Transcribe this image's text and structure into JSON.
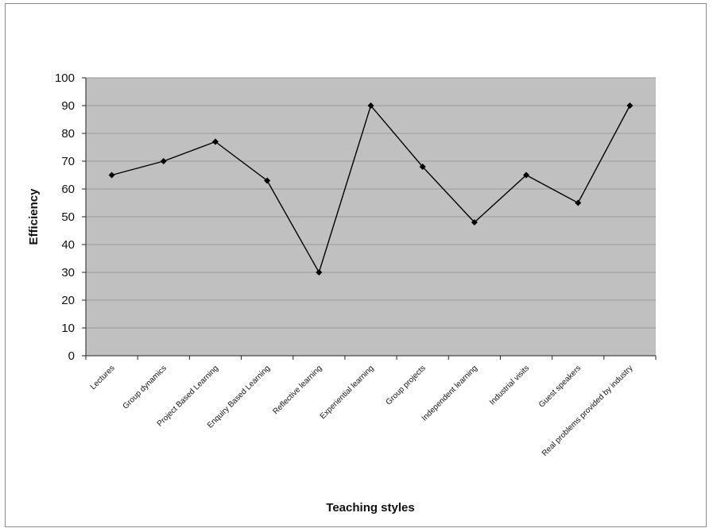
{
  "chart_data": {
    "type": "line",
    "title": "",
    "xlabel": "Teaching styles",
    "ylabel": "Efficiency",
    "ylim": [
      0,
      100
    ],
    "yticks": [
      0,
      10,
      20,
      30,
      40,
      50,
      60,
      70,
      80,
      90,
      100
    ],
    "grid": true,
    "legend": "none",
    "categories": [
      "Lectures",
      "Group dynamics",
      "Project Based Learning",
      "Enquiry Based Learning",
      "Reflective learning",
      "Experiential learning",
      "Group projects",
      "Independent learning",
      "Industrial visits",
      "Guest speakers",
      "Real problems provided by industry"
    ],
    "series": [
      {
        "values": [
          65,
          70,
          77,
          63,
          30,
          90,
          68,
          48,
          65,
          55,
          90
        ]
      }
    ],
    "colors": {
      "plot_background": "#c0c0c0",
      "gridline": "#9a9a9a",
      "line": "#000000",
      "marker": "#000000"
    },
    "marker": "diamond"
  }
}
